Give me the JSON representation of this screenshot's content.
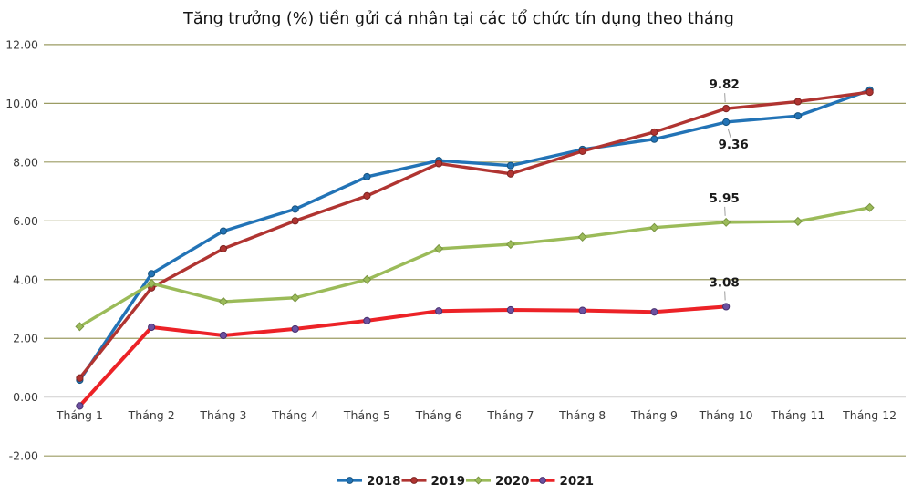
{
  "chart_data": {
    "type": "line",
    "title": "Tăng trưởng (%) tiền gửi cá nhân tại các tổ chức tín dụng theo tháng",
    "categories": [
      "Tháng 1",
      "Tháng 2",
      "Tháng 3",
      "Tháng 4",
      "Tháng 5",
      "Tháng 6",
      "Tháng 7",
      "Tháng 8",
      "Tháng 9",
      "Tháng 10",
      "Tháng 11",
      "Tháng 12"
    ],
    "series": [
      {
        "name": "2018",
        "color": "#2273B6",
        "marker": "circle",
        "marker_color": "#2273B6",
        "marker_stroke": "#17537f",
        "values": [
          0.58,
          4.2,
          5.65,
          6.4,
          7.5,
          8.05,
          7.88,
          8.43,
          8.78,
          9.36,
          9.57,
          10.45
        ]
      },
      {
        "name": "2019",
        "color": "#B03431",
        "marker": "circle",
        "marker_color": "#B03431",
        "marker_stroke": "#7d2422",
        "values": [
          0.65,
          3.72,
          5.05,
          6.0,
          6.85,
          7.95,
          7.6,
          8.37,
          9.02,
          9.82,
          10.06,
          10.38
        ]
      },
      {
        "name": "2020",
        "color": "#9BBB59",
        "marker": "diamond",
        "marker_color": "#9BBB59",
        "marker_stroke": "#7a9542",
        "values": [
          2.4,
          3.87,
          3.25,
          3.38,
          4.0,
          5.05,
          5.2,
          5.45,
          5.77,
          5.95,
          5.98,
          6.45
        ]
      },
      {
        "name": "2021",
        "color": "#EC2227",
        "marker": "circle",
        "marker_color": "#6C51A1",
        "marker_stroke": "#47306e",
        "values": [
          -0.3,
          2.38,
          2.1,
          2.32,
          2.6,
          2.93,
          2.97,
          2.95,
          2.9,
          3.08
        ]
      }
    ],
    "annotations": [
      {
        "series_index": 1,
        "point_index": 9,
        "text": "9.82",
        "placement": "above"
      },
      {
        "series_index": 0,
        "point_index": 9,
        "text": "9.36",
        "placement": "below"
      },
      {
        "series_index": 2,
        "point_index": 9,
        "text": "5.95",
        "placement": "above"
      },
      {
        "series_index": 3,
        "point_index": 9,
        "text": "3.08",
        "placement": "above"
      }
    ],
    "y_ticks": [
      "12.00",
      "10.00",
      "8.00",
      "6.00",
      "4.00",
      "2.00",
      "0.00",
      "-2.00"
    ],
    "ylim": [
      -2,
      12
    ],
    "grid_on": true,
    "legend_position": "bottom",
    "colors": {
      "grid": "#9B9C63",
      "zero_line": "#D6D4D4",
      "leader_line": "#9e9e9e",
      "axis_text": "#3b3b3b",
      "title_text": "#141414",
      "label_text": "#1a1a1a"
    }
  }
}
